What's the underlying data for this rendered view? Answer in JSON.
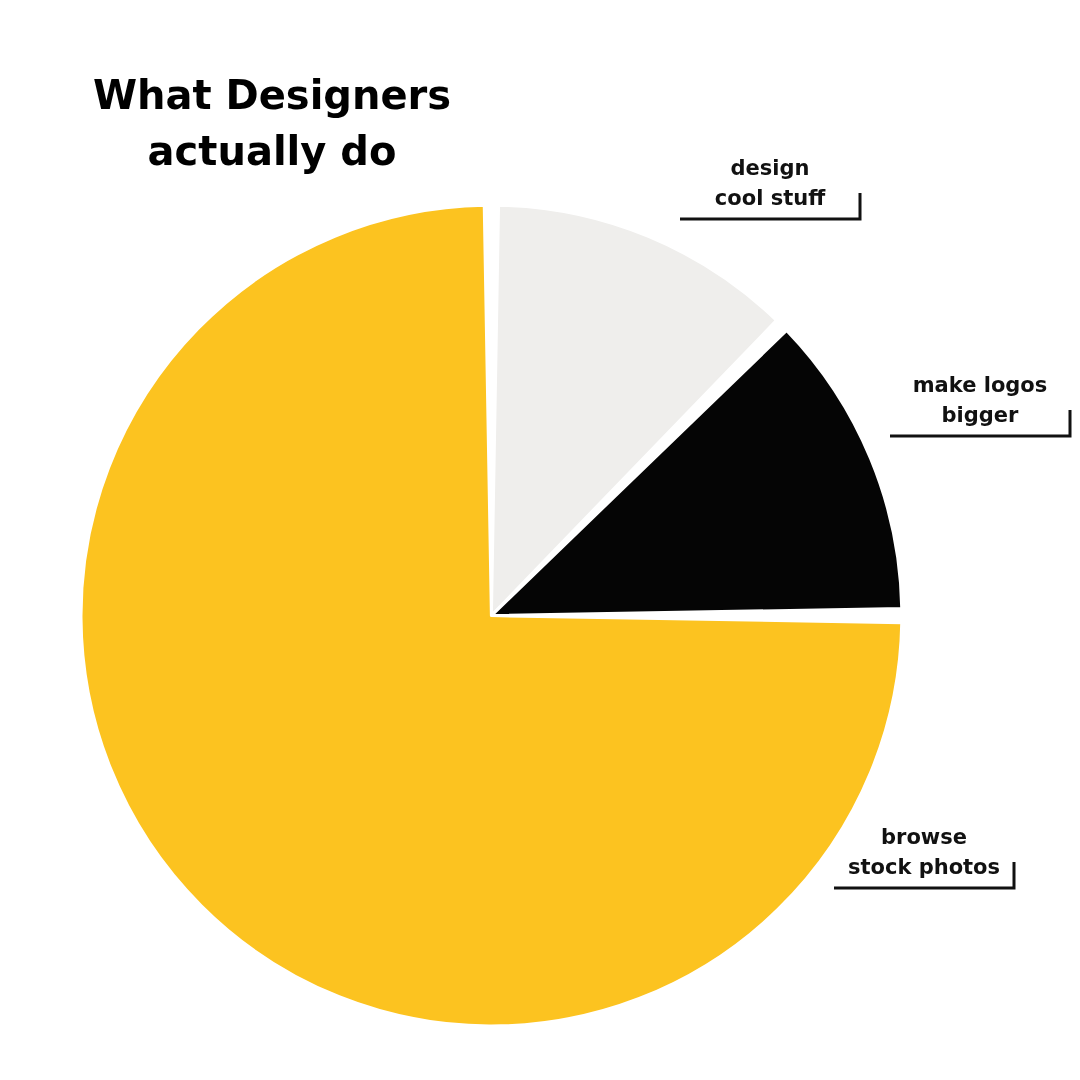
{
  "chart_data": {
    "type": "pie",
    "title": "What Designers actually do",
    "categories": [
      "design cool stuff",
      "make logos bigger",
      "browse stock photos"
    ],
    "values": [
      12.5,
      12.5,
      75
    ],
    "colors": [
      "#efeeec",
      "#050505",
      "#fcc320"
    ],
    "legend": false
  }
}
